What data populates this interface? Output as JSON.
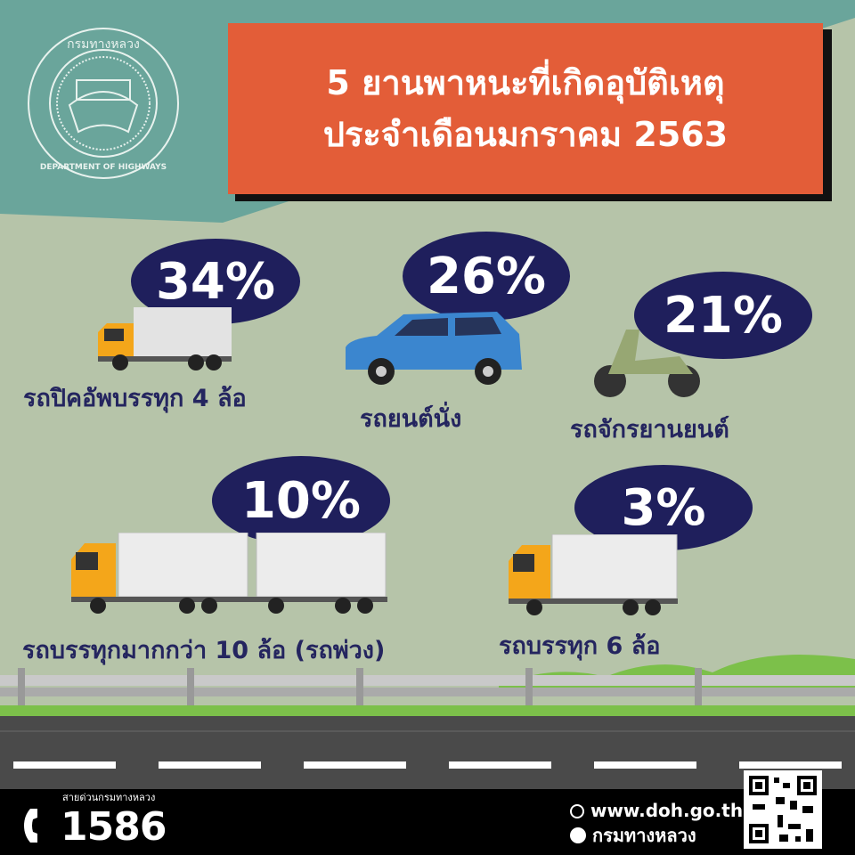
{
  "logo": {
    "text_top": "กรมทางหลวง",
    "text_bottom": "DEPARTMENT OF HIGHWAYS"
  },
  "title": {
    "line1": "5 ยานพาหนะที่เกิดอุบัติเหตุ",
    "line2": "ประจำเดือนมกราคม 2563"
  },
  "colors": {
    "title_bg": "#e35d38",
    "oval": "#1f1f5c",
    "label": "#24255f",
    "top_bg": "#6aa59b",
    "bg": "#b6c4a9"
  },
  "vehicles": [
    {
      "percent": "34%",
      "label": "รถปิคอัพบรรทุก 4 ล้อ",
      "icon": "pickup-truck-icon"
    },
    {
      "percent": "26%",
      "label": "รถยนต์นั่ง",
      "icon": "car-icon"
    },
    {
      "percent": "21%",
      "label": "รถจักรยานยนต์",
      "icon": "motorcycle-icon"
    },
    {
      "percent": "10%",
      "label": "รถบรรทุกมากกว่า 10 ล้อ (รถพ่วง)",
      "icon": "trailer-truck-icon"
    },
    {
      "percent": "3%",
      "label": "รถบรรทุก 6 ล้อ",
      "icon": "six-wheel-truck-icon"
    }
  ],
  "footer": {
    "hotline_label": "สายด่วนกรมทางหลวง",
    "hotline": "1586",
    "website": "www.doh.go.th",
    "facebook": "กรมทางหลวง"
  }
}
